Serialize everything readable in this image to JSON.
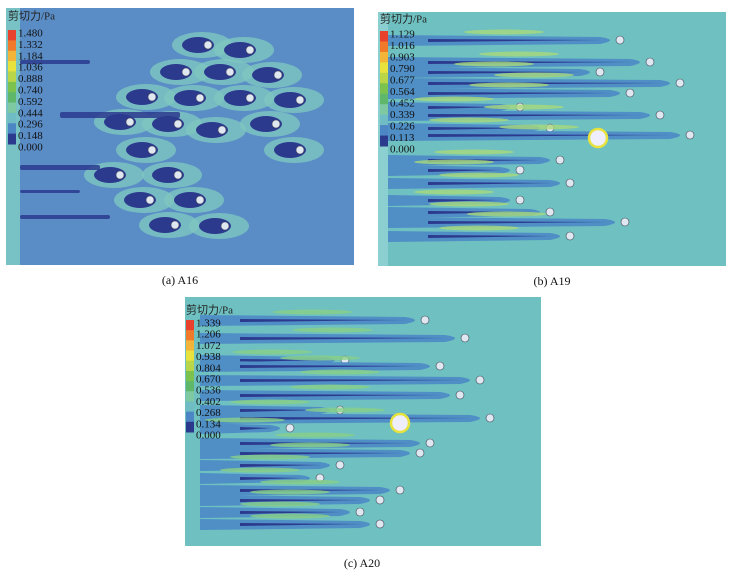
{
  "legend_colors": [
    "#e8412c",
    "#f07a2a",
    "#f3b43a",
    "#e8e23c",
    "#b9d548",
    "#7cc24e",
    "#5fb86a",
    "#7ec9a2",
    "#6fbcc4",
    "#4d86c4",
    "#2c3a8e"
  ],
  "panels": [
    {
      "legend_title": "剪切力/Pa",
      "legend_labels": [
        "1.480",
        "1.332",
        "1.184",
        "1.036",
        "0.888",
        "0.740",
        "0.592",
        "0.444",
        "0.296",
        "0.148",
        "0.000"
      ],
      "caption": "(a) A16"
    },
    {
      "legend_title": "剪切力/Pa",
      "legend_labels": [
        "1.129",
        "1.016",
        "0.903",
        "0.790",
        "0.677",
        "0.564",
        "0.452",
        "0.339",
        "0.226",
        "0.113",
        "0.000"
      ],
      "caption": "(b) A19"
    },
    {
      "legend_title": "剪切力/Pa",
      "legend_labels": [
        "1.339",
        "1.206",
        "1.072",
        "0.938",
        "0.804",
        "0.670",
        "0.536",
        "0.402",
        "0.268",
        "0.134",
        "0.000"
      ],
      "caption": "(c) A20"
    }
  ]
}
